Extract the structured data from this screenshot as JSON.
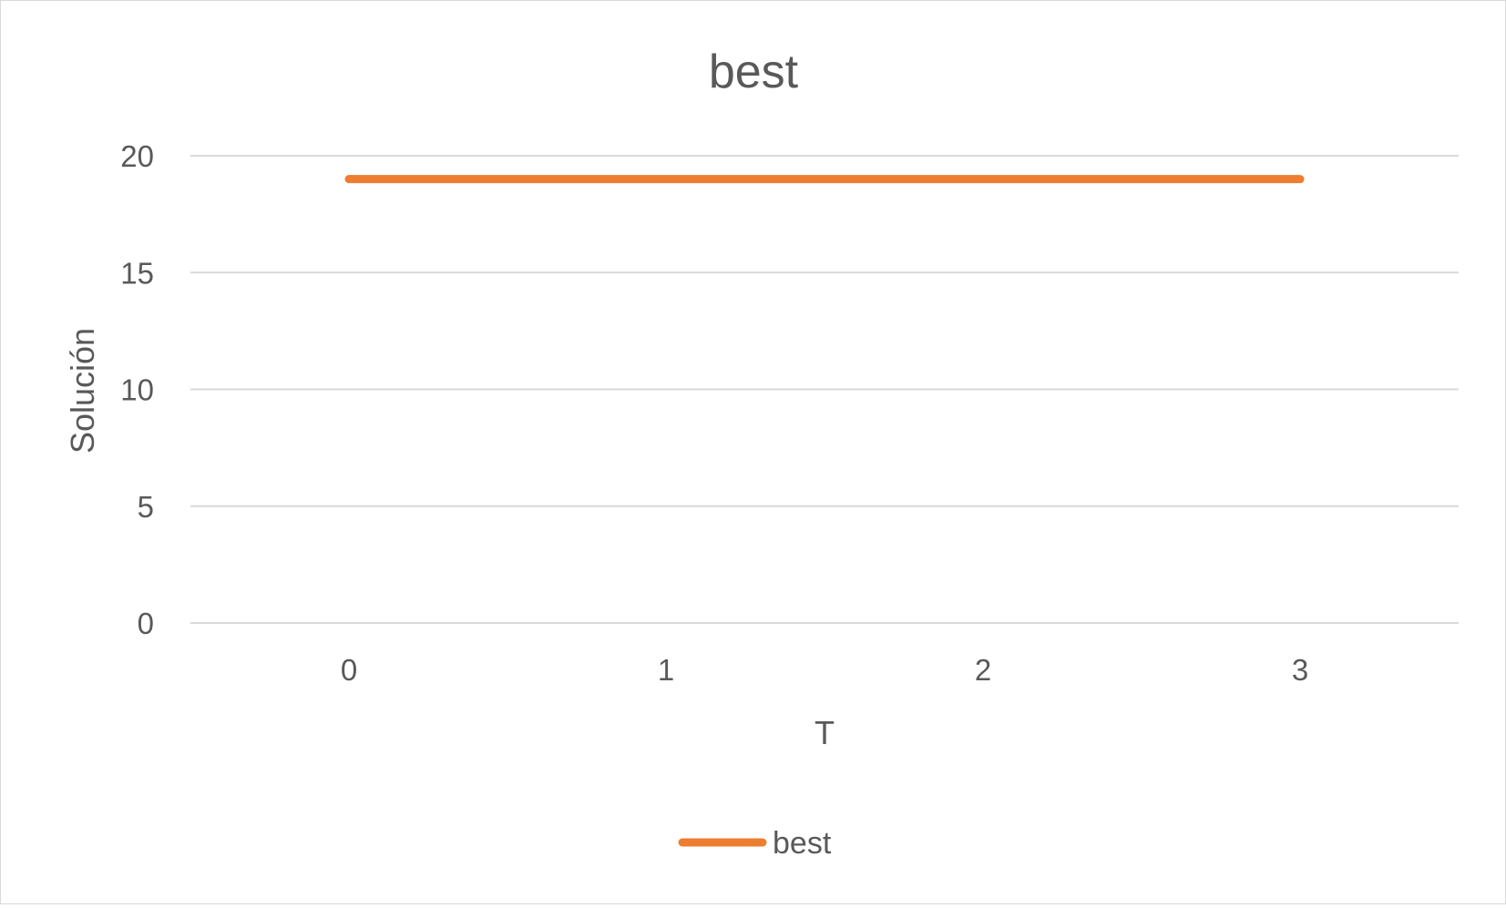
{
  "chart_data": {
    "type": "line",
    "title": "best",
    "xlabel": "T",
    "ylabel": "Solución",
    "x": [
      0,
      1,
      2,
      3
    ],
    "series": [
      {
        "name": "best",
        "values": [
          19,
          19,
          19,
          19
        ]
      }
    ],
    "ylim": [
      0,
      20
    ],
    "yticks": [
      0,
      5,
      10,
      15,
      20
    ],
    "xticks": [
      0,
      1,
      2,
      3
    ],
    "grid": true,
    "legend_position": "bottom",
    "colors": {
      "series": "#ED7D31",
      "grid": "#D9D9D9",
      "text": "#595959"
    }
  }
}
